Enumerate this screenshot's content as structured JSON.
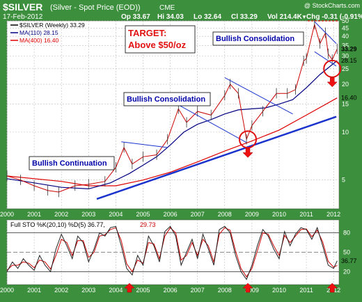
{
  "header": {
    "symbol": "$SILVER",
    "name": "(Silver - Spot Price (EOD))",
    "exchange": "CME",
    "watermark": "@ StockCharts.com",
    "date": "17-Feb-2012",
    "op": "Op 33.67",
    "hi": "Hi 34.03",
    "lo": "Lo 32.64",
    "cl": "Cl 33.29",
    "vol": "Vol 214.4K",
    "chg": "Chg -0.31 (-0.91%)",
    "chg_arrow": "▼"
  },
  "colors": {
    "frame": "#3c8f3c",
    "panel": "#ffffff",
    "grid": "#bdbdbd",
    "price": "#cc0000",
    "ma110": "#000080",
    "ma400": "#dd0000",
    "trend": "#1a33cc",
    "annotation_red": "#e01010",
    "arrow_red": "#ee1111"
  },
  "chart_data": [
    {
      "type": "line",
      "title": "$SILVER (Weekly) 33.29",
      "scale": "log",
      "ylim": [
        3.3,
        50
      ],
      "y_ticks": [
        5,
        10,
        15,
        20,
        25,
        30,
        35,
        40,
        45,
        50
      ],
      "x_ticks": [
        "2000",
        "2001",
        "2002",
        "2003",
        "2004",
        "2005",
        "2006",
        "2007",
        "2008",
        "2009",
        "2010",
        "2011",
        "2012"
      ],
      "xlim": [
        2000.0,
        2012.2
      ],
      "legend": [
        {
          "label": "$SILVER (Weekly) 33.29",
          "color": "#000000"
        },
        {
          "label": "MA(110) 28.15",
          "color": "#000080"
        },
        {
          "label": "MA(400) 16.40",
          "color": "#dd0000"
        }
      ],
      "last_values": {
        "price": "33.29",
        "ma110": "28.15",
        "ma400": "16.40"
      },
      "series": [
        {
          "name": "$SILVER (Weekly) 33.29",
          "x": [
            2000.0,
            2000.5,
            2001.0,
            2001.5,
            2001.9,
            2002.5,
            2003.0,
            2003.6,
            2004.0,
            2004.3,
            2004.6,
            2005.0,
            2005.5,
            2005.9,
            2006.3,
            2006.6,
            2007.0,
            2007.5,
            2008.0,
            2008.2,
            2008.5,
            2008.8,
            2009.0,
            2009.4,
            2009.9,
            2010.3,
            2010.6,
            2010.9,
            2011.0,
            2011.3,
            2011.5,
            2011.7,
            2011.8,
            2011.95,
            2012.13
          ],
          "values": [
            5.3,
            5.0,
            4.6,
            4.3,
            4.2,
            4.6,
            4.7,
            4.9,
            6.0,
            8.0,
            6.3,
            7.0,
            7.2,
            9.0,
            14.0,
            11.5,
            13.5,
            12.8,
            17.0,
            20.0,
            17.5,
            9.0,
            11.0,
            13.5,
            17.5,
            17.5,
            18.5,
            28.0,
            29.0,
            47.5,
            36.0,
            42.0,
            31.0,
            28.5,
            33.29
          ]
        },
        {
          "name": "MA(110) 28.15",
          "x": [
            2000.0,
            2001.0,
            2002.0,
            2003.0,
            2003.8,
            2004.5,
            2005.0,
            2005.5,
            2006.0,
            2006.5,
            2007.0,
            2007.5,
            2008.0,
            2008.5,
            2009.0,
            2009.5,
            2010.0,
            2010.5,
            2011.0,
            2011.5,
            2012.13
          ],
          "values": [
            5.1,
            4.8,
            4.5,
            4.4,
            4.8,
            5.5,
            6.2,
            7.0,
            8.3,
            10.0,
            11.2,
            12.0,
            13.0,
            13.8,
            14.0,
            14.2,
            15.0,
            16.0,
            19.0,
            23.0,
            28.15
          ]
        },
        {
          "name": "MA(400) 16.40",
          "x": [
            2000.0,
            2002.0,
            2003.0,
            2004.0,
            2005.0,
            2006.0,
            2007.0,
            2008.0,
            2009.0,
            2010.0,
            2011.0,
            2012.13
          ],
          "values": [
            5.3,
            4.9,
            4.6,
            4.6,
            5.0,
            5.6,
            6.5,
            7.6,
            8.8,
            10.3,
            12.8,
            16.4
          ]
        }
      ],
      "trendlines": [
        {
          "x": [
            2003.3,
            2012.1
          ],
          "values": [
            3.8,
            12.5
          ]
        },
        {
          "x": [
            2004.2,
            2005.9
          ],
          "values": [
            8.7,
            8.0
          ]
        },
        {
          "x": [
            2006.1,
            2008.8
          ],
          "values": [
            15.5,
            8.6
          ]
        },
        {
          "x": [
            2008.0,
            2010.5
          ],
          "values": [
            22.0,
            13.0
          ]
        },
        {
          "x": [
            2011.3,
            2012.1
          ],
          "values": [
            32.0,
            26.0
          ]
        },
        {
          "x": [
            2011.3,
            2012.1
          ],
          "values": [
            49.5,
            36.0
          ]
        }
      ],
      "annotations": [
        {
          "text": "Bullish Continuation"
        },
        {
          "text": "Bullish Consolidation"
        },
        {
          "text": "Bullish Consolidation"
        },
        {
          "text": "TARGET:"
        },
        {
          "text": "Above $50/oz"
        }
      ],
      "circles": [
        {
          "x": 2008.85,
          "value": 9.0
        },
        {
          "x": 2011.95,
          "value": 25.0
        }
      ],
      "arrows": [
        {
          "x": 2008.85
        },
        {
          "x": 2011.95
        }
      ]
    },
    {
      "type": "line",
      "title": "Full STO %K(20,10) %D(5) 36.77, 29.73",
      "legend": [
        {
          "label": "Full STO %K(20,10) %D(5) 36.77,",
          "color": "#000000"
        },
        {
          "label": "29.73",
          "color": "#cc0000"
        }
      ],
      "last_values": {
        "k": "36.77",
        "d": "29.73"
      },
      "ylim": [
        0,
        100
      ],
      "y_ticks": [
        20,
        50,
        80
      ],
      "x_ticks": [
        "2000",
        "2001",
        "2002",
        "2003",
        "2004",
        "2005",
        "2006",
        "2007",
        "2008",
        "2009",
        "2010",
        "2011",
        "2012"
      ],
      "series": [
        {
          "name": "%K",
          "x": [
            2000.0,
            2000.2,
            2000.4,
            2000.6,
            2000.8,
            2001.0,
            2001.2,
            2001.4,
            2001.6,
            2001.8,
            2002.0,
            2002.2,
            2002.4,
            2002.6,
            2002.8,
            2003.0,
            2003.2,
            2003.4,
            2003.6,
            2003.8,
            2004.0,
            2004.2,
            2004.4,
            2004.6,
            2004.8,
            2005.0,
            2005.2,
            2005.4,
            2005.6,
            2005.8,
            2006.0,
            2006.2,
            2006.4,
            2006.6,
            2006.8,
            2007.0,
            2007.2,
            2007.4,
            2007.6,
            2007.8,
            2008.0,
            2008.2,
            2008.4,
            2008.6,
            2008.8,
            2009.0,
            2009.2,
            2009.4,
            2009.6,
            2009.8,
            2010.0,
            2010.2,
            2010.4,
            2010.6,
            2010.8,
            2011.0,
            2011.2,
            2011.4,
            2011.6,
            2011.8,
            2012.0,
            2012.13
          ],
          "values": [
            20,
            35,
            25,
            40,
            30,
            22,
            45,
            30,
            20,
            55,
            78,
            60,
            40,
            75,
            65,
            35,
            55,
            80,
            75,
            88,
            90,
            60,
            25,
            15,
            45,
            30,
            75,
            60,
            35,
            82,
            90,
            75,
            30,
            50,
            70,
            40,
            78,
            55,
            30,
            85,
            90,
            80,
            45,
            20,
            8,
            30,
            60,
            85,
            75,
            55,
            40,
            82,
            60,
            78,
            88,
            85,
            70,
            88,
            60,
            30,
            25,
            36.77
          ]
        },
        {
          "name": "%D",
          "x": [
            2000.0,
            2000.2,
            2000.4,
            2000.6,
            2000.8,
            2001.0,
            2001.2,
            2001.4,
            2001.6,
            2001.8,
            2002.0,
            2002.2,
            2002.4,
            2002.6,
            2002.8,
            2003.0,
            2003.2,
            2003.4,
            2003.6,
            2003.8,
            2004.0,
            2004.2,
            2004.4,
            2004.6,
            2004.8,
            2005.0,
            2005.2,
            2005.4,
            2005.6,
            2005.8,
            2006.0,
            2006.2,
            2006.4,
            2006.6,
            2006.8,
            2007.0,
            2007.2,
            2007.4,
            2007.6,
            2007.8,
            2008.0,
            2008.2,
            2008.4,
            2008.6,
            2008.8,
            2009.0,
            2009.2,
            2009.4,
            2009.6,
            2009.8,
            2010.0,
            2010.2,
            2010.4,
            2010.6,
            2010.8,
            2011.0,
            2011.2,
            2011.4,
            2011.6,
            2011.8,
            2012.0,
            2012.13
          ],
          "values": [
            22,
            30,
            30,
            35,
            33,
            26,
            38,
            35,
            24,
            45,
            70,
            65,
            45,
            68,
            68,
            42,
            50,
            75,
            77,
            85,
            88,
            68,
            32,
            20,
            38,
            33,
            65,
            63,
            40,
            75,
            88,
            80,
            38,
            45,
            65,
            45,
            70,
            60,
            35,
            78,
            88,
            84,
            52,
            25,
            12,
            25,
            52,
            80,
            78,
            60,
            45,
            76,
            65,
            75,
            85,
            86,
            74,
            84,
            66,
            36,
            27,
            29.73
          ]
        }
      ],
      "arrows": [
        {
          "x": 2004.5
        },
        {
          "x": 2008.85
        },
        {
          "x": 2011.95
        }
      ]
    }
  ]
}
